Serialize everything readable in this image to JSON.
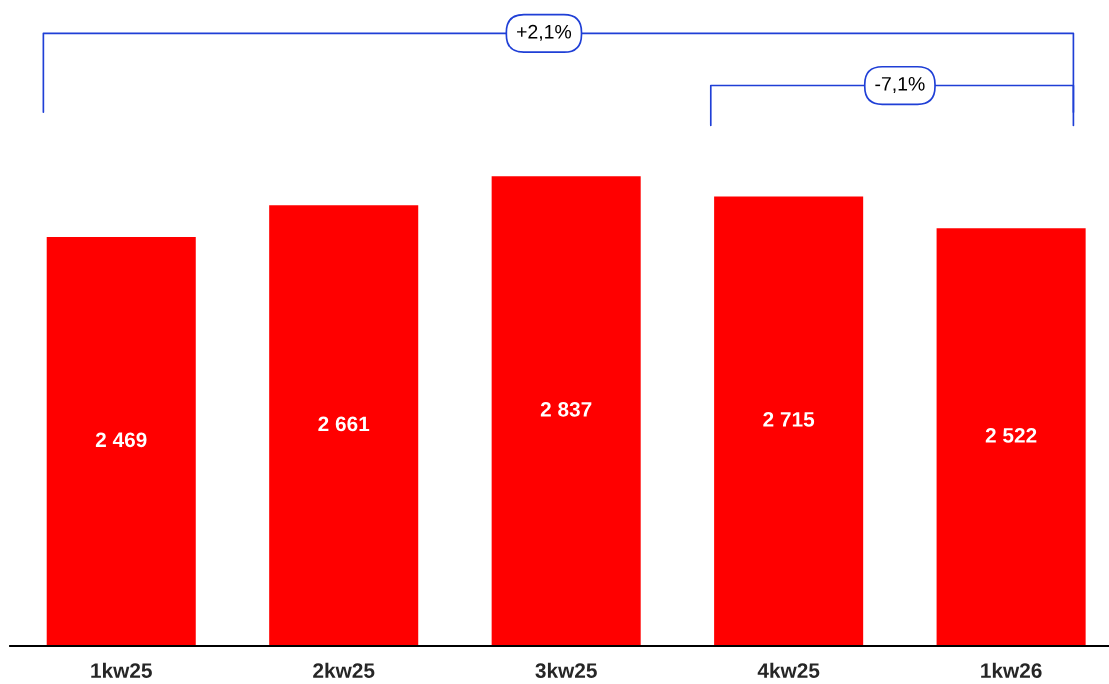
{
  "chart_data": {
    "type": "bar",
    "categories": [
      "1kw25",
      "2kw25",
      "3kw25",
      "4kw25",
      "1kw26"
    ],
    "values": [
      2469,
      2661,
      2837,
      2715,
      2522
    ],
    "value_labels": [
      "2 469",
      "2 661",
      "2 837",
      "2 715",
      "2 522"
    ],
    "color": "#ff0000",
    "tick_labels": "x",
    "grid": false,
    "legend": false,
    "annotations": [
      "+2,1%",
      "-7,1%"
    ]
  }
}
